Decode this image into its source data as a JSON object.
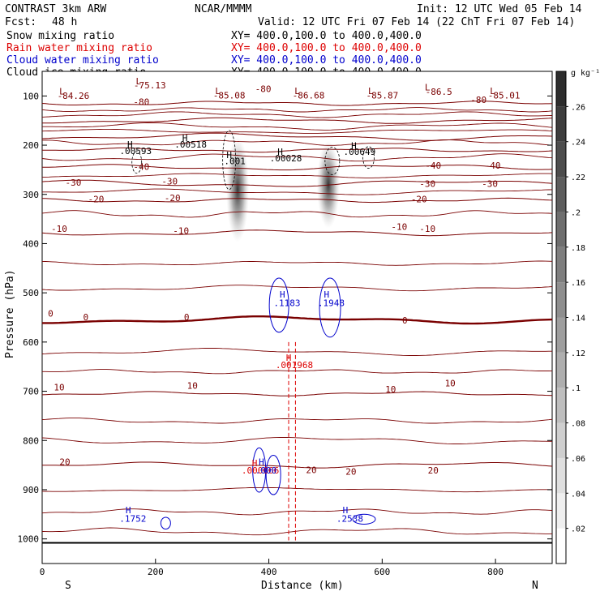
{
  "header": {
    "title_left": "CONTRAST  3km ARW",
    "center": "NCAR/MMMM",
    "init": "Init: 12 UTC Wed 05 Feb 14",
    "fcst_label": "Fcst:",
    "fcst_value": "48 h",
    "valid": "Valid: 12 UTC Fri 07 Feb 14 (22 ChT Fri 07 Feb 14)"
  },
  "legend": [
    {
      "label": "Snow mixing ratio",
      "xy": "",
      "color": "#000000"
    },
    {
      "label": "Rain water mixing ratio",
      "xy": "XY=  400.0,100.0  to  400.0,400.0",
      "color": "#dd0000"
    },
    {
      "label": "Cloud water mixing ratio",
      "xy": "XY=  400.0,100.0  to  400.0,400.0",
      "color": "#0000cc"
    },
    {
      "label": "Cloud ice mixing ratio",
      "xy": "XY=  400.0,100.0  to  400.0,400.0",
      "color": "#000000"
    }
  ],
  "snow_xy": "XY=  400.0,100.0  to  400.0,400.0",
  "colors": {
    "temperature": "#7a0000",
    "rain": "#dd0000",
    "cloud_water": "#0000cc",
    "frame": "#000000"
  },
  "chart_data": {
    "type": "heatmap",
    "xlabel": "Distance (km)",
    "ylabel": "Pressure (hPa)",
    "xlim": [
      0,
      900
    ],
    "ylim": [
      1050,
      50
    ],
    "x_ticks": [
      0,
      200,
      400,
      600,
      800
    ],
    "y_ticks": [
      100,
      200,
      300,
      400,
      500,
      600,
      700,
      800,
      900,
      1000
    ],
    "x_end_labels": {
      "left": "S",
      "right": "N"
    },
    "colorbar": {
      "unit": "g kg⁻¹",
      "ticks": [
        ".02",
        ".04",
        ".06",
        ".08",
        ".1",
        ".12",
        ".14",
        ".16",
        ".18",
        ".2",
        ".22",
        ".24",
        ".26"
      ]
    },
    "temperature_contours": [
      {
        "level": -80,
        "p": 115
      },
      {
        "level": -70,
        "p": 150
      },
      {
        "level": -60,
        "p": 183
      },
      {
        "level": -50,
        "p": 210
      },
      {
        "level": -40,
        "p": 245
      },
      {
        "level": -30,
        "p": 278
      },
      {
        "level": -20,
        "p": 312
      },
      {
        "level": -10,
        "p": 378
      },
      {
        "level": 0,
        "p": 555
      },
      {
        "level": 10,
        "p": 705
      },
      {
        "level": 20,
        "p": 850
      }
    ],
    "temperature_labels": [
      {
        "text": "-80",
        "x": 175,
        "p": 118
      },
      {
        "text": "-80",
        "x": 390,
        "p": 92
      },
      {
        "text": "-80",
        "x": 770,
        "p": 114
      },
      {
        "text": "-40",
        "x": 175,
        "p": 250
      },
      {
        "text": "-40",
        "x": 690,
        "p": 248
      },
      {
        "text": "-40",
        "x": 795,
        "p": 248
      },
      {
        "text": "-30",
        "x": 55,
        "p": 282
      },
      {
        "text": "-30",
        "x": 225,
        "p": 280
      },
      {
        "text": "-30",
        "x": 680,
        "p": 285
      },
      {
        "text": "-30",
        "x": 790,
        "p": 285
      },
      {
        "text": "-20",
        "x": 95,
        "p": 316
      },
      {
        "text": "-20",
        "x": 230,
        "p": 314
      },
      {
        "text": "-20",
        "x": 665,
        "p": 316
      },
      {
        "text": "-10",
        "x": 30,
        "p": 376
      },
      {
        "text": "-10",
        "x": 245,
        "p": 380
      },
      {
        "text": "-10",
        "x": 630,
        "p": 372
      },
      {
        "text": "-10",
        "x": 680,
        "p": 376
      },
      {
        "text": "0",
        "x": 15,
        "p": 548
      },
      {
        "text": "0",
        "x": 77,
        "p": 556
      },
      {
        "text": "0",
        "x": 255,
        "p": 556
      },
      {
        "text": "0",
        "x": 640,
        "p": 562
      },
      {
        "text": "10",
        "x": 30,
        "p": 698
      },
      {
        "text": "10",
        "x": 265,
        "p": 695
      },
      {
        "text": "10",
        "x": 615,
        "p": 702
      },
      {
        "text": "10",
        "x": 720,
        "p": 690
      },
      {
        "text": "20",
        "x": 40,
        "p": 850
      },
      {
        "text": "20",
        "x": 475,
        "p": 866
      },
      {
        "text": "20",
        "x": 545,
        "p": 870
      },
      {
        "text": "20",
        "x": 690,
        "p": 867
      }
    ],
    "snow_maxima": [
      {
        "text": "-75.13",
        "x": 190,
        "p": 82
      },
      {
        "text": "-84.26",
        "x": 55,
        "p": 103
      },
      {
        "text": "-85.08",
        "x": 330,
        "p": 102
      },
      {
        "text": "-86.68",
        "x": 470,
        "p": 102
      },
      {
        "text": "-85.87",
        "x": 600,
        "p": 102
      },
      {
        "text": "-86.5",
        "x": 700,
        "p": 95
      },
      {
        "text": "-85.01",
        "x": 815,
        "p": 102
      }
    ],
    "ice_maxima": [
      {
        "text": ".00593",
        "x": 165,
        "p": 218
      },
      {
        "text": ".00518",
        "x": 262,
        "p": 205
      },
      {
        "text": ".001",
        "x": 340,
        "p": 239
      },
      {
        "text": ".00028",
        "x": 430,
        "p": 233
      },
      {
        "text": ".00649",
        "x": 560,
        "p": 220
      }
    ],
    "rain_maxima": [
      {
        "text": ".001968",
        "x": 445,
        "p": 653
      },
      {
        "text": ".000666",
        "x": 385,
        "p": 867
      }
    ],
    "cloud_water_maxima": [
      {
        "text": ".1183",
        "x": 432,
        "p": 527
      },
      {
        "text": ".1948",
        "x": 510,
        "p": 527
      },
      {
        "text": ".000",
        "x": 395,
        "p": 867
      },
      {
        "text": ".1752",
        "x": 160,
        "p": 965
      },
      {
        "text": ".2538",
        "x": 543,
        "p": 965
      }
    ],
    "snow_cores": [
      {
        "x": 345,
        "p": 290,
        "amount": 0.2
      },
      {
        "x": 505,
        "p": 280,
        "amount": 0.16
      }
    ]
  }
}
